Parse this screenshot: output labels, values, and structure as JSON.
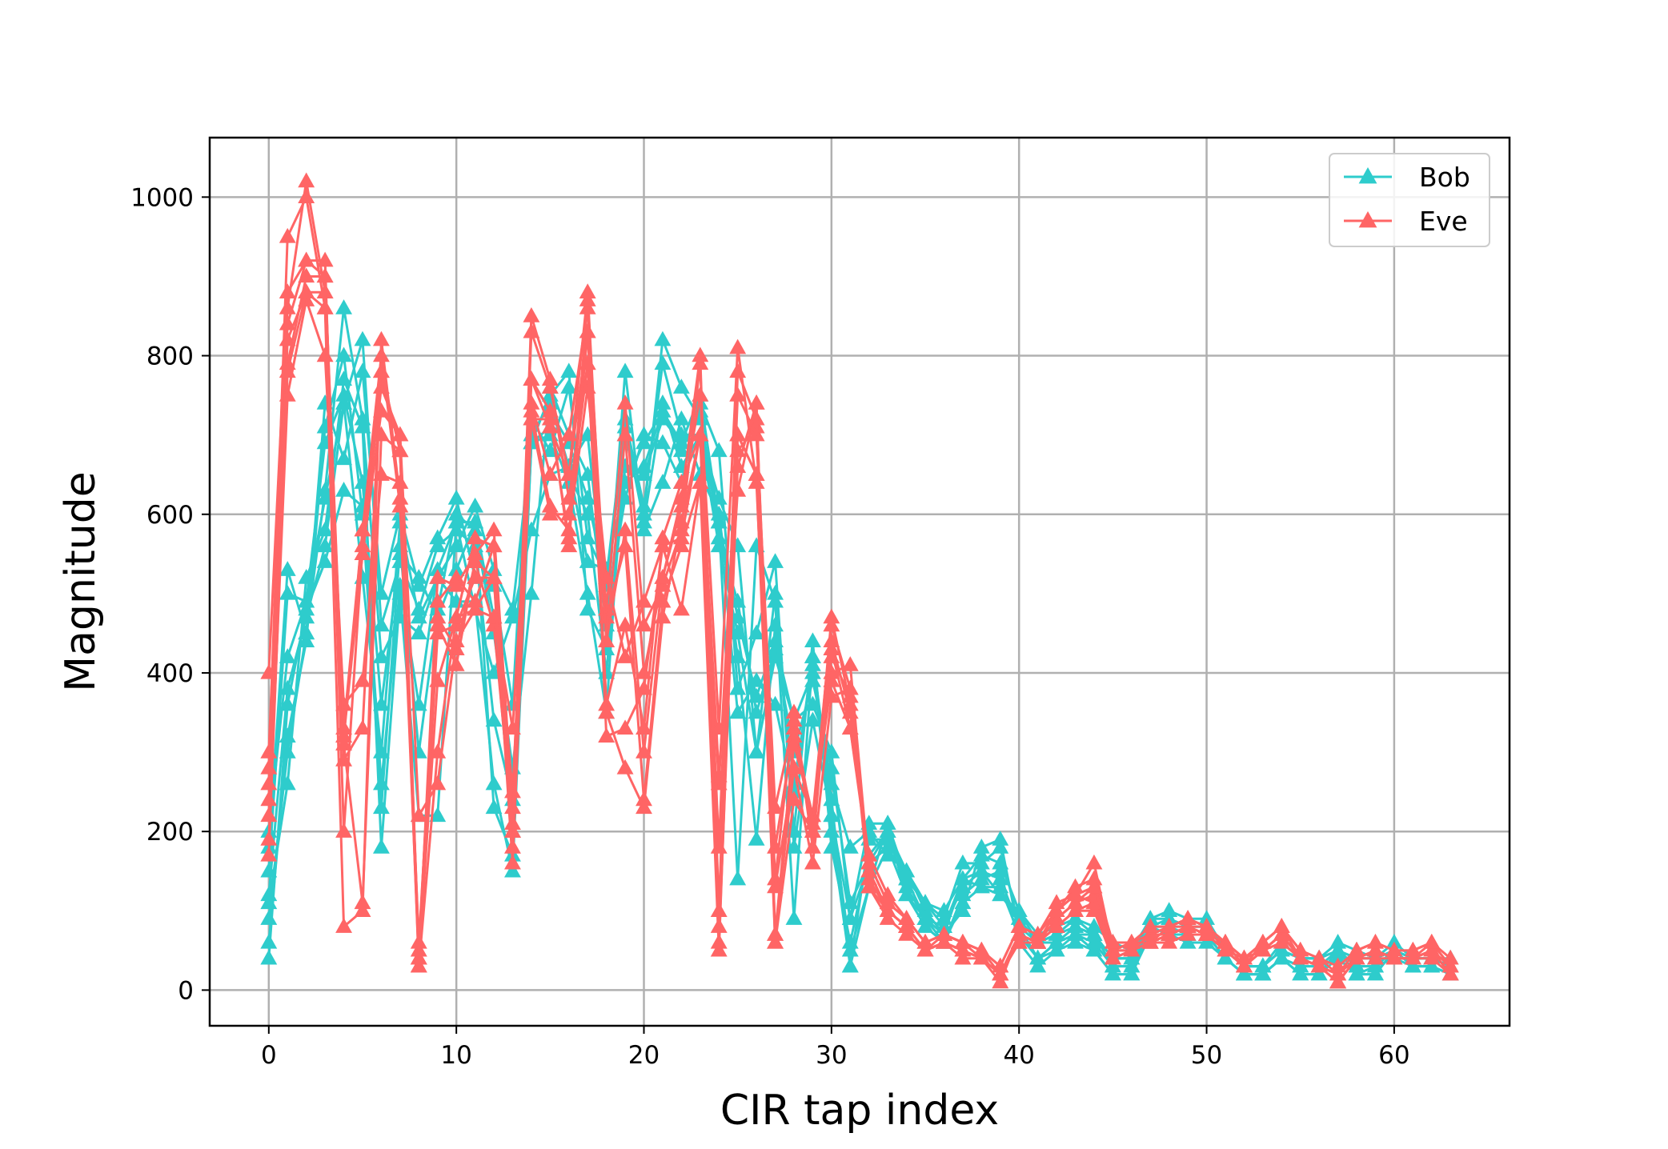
{
  "chart_data": {
    "type": "line",
    "title": "",
    "xlabel": "CIR tap index",
    "ylabel": "Magnitude",
    "xlim": [
      -3.15,
      66.15
    ],
    "ylim": [
      -45,
      1075
    ],
    "xticks": [
      0,
      10,
      20,
      30,
      40,
      50,
      60
    ],
    "yticks": [
      0,
      200,
      400,
      600,
      800,
      1000
    ],
    "xtick_labels": [
      "0",
      "10",
      "20",
      "30",
      "40",
      "50",
      "60"
    ],
    "ytick_labels": [
      "0",
      "200",
      "400",
      "600",
      "800",
      "1000"
    ],
    "grid": true,
    "legend_position": "top-right",
    "marker": "triangle-up",
    "x": [
      0,
      1,
      2,
      3,
      4,
      5,
      6,
      7,
      8,
      9,
      10,
      11,
      12,
      13,
      14,
      15,
      16,
      17,
      18,
      19,
      20,
      21,
      22,
      23,
      24,
      25,
      26,
      27,
      28,
      29,
      30,
      31,
      32,
      33,
      34,
      35,
      36,
      37,
      38,
      39,
      40,
      41,
      42,
      43,
      44,
      45,
      46,
      47,
      48,
      49,
      50,
      51,
      52,
      53,
      54,
      55,
      56,
      57,
      58,
      59,
      60,
      61,
      62,
      63
    ],
    "series": [
      {
        "name": "Bob",
        "color": "#2ecccc",
        "traces": [
          [
            120,
            380,
            470,
            560,
            740,
            520,
            300,
            590,
            470,
            520,
            560,
            610,
            530,
            480,
            690,
            710,
            650,
            600,
            400,
            660,
            650,
            720,
            690,
            700,
            620,
            560,
            300,
            420,
            340,
            400,
            260,
            180,
            200,
            170,
            150,
            110,
            100,
            140,
            170,
            160,
            100,
            70,
            80,
            90,
            80,
            60,
            50,
            90,
            90,
            80,
            80,
            50,
            30,
            30,
            60,
            40,
            40,
            60,
            50,
            40,
            50,
            40,
            40,
            30
          ],
          [
            60,
            320,
            440,
            710,
            800,
            600,
            230,
            560,
            300,
            480,
            600,
            580,
            450,
            280,
            500,
            760,
            700,
            650,
            460,
            780,
            580,
            640,
            720,
            650,
            600,
            420,
            190,
            460,
            260,
            410,
            200,
            30,
            190,
            190,
            150,
            100,
            70,
            140,
            150,
            140,
            80,
            40,
            60,
            70,
            70,
            30,
            30,
            70,
            70,
            70,
            70,
            40,
            20,
            20,
            40,
            30,
            30,
            40,
            20,
            30,
            40,
            30,
            30,
            20
          ],
          [
            150,
            500,
            490,
            620,
            740,
            820,
            460,
            540,
            480,
            560,
            580,
            560,
            340,
            240,
            720,
            680,
            760,
            570,
            520,
            720,
            610,
            790,
            700,
            700,
            560,
            450,
            300,
            500,
            200,
            440,
            180,
            60,
            170,
            200,
            120,
            90,
            70,
            100,
            180,
            190,
            70,
            40,
            60,
            70,
            60,
            30,
            30,
            80,
            80,
            70,
            70,
            40,
            20,
            20,
            40,
            30,
            30,
            50,
            30,
            30,
            50,
            40,
            40,
            30
          ],
          [
            90,
            300,
            450,
            630,
            860,
            720,
            420,
            470,
            450,
            520,
            490,
            490,
            260,
            150,
            690,
            750,
            780,
            480,
            430,
            640,
            690,
            730,
            690,
            750,
            590,
            350,
            390,
            360,
            250,
            420,
            220,
            50,
            130,
            210,
            130,
            90,
            60,
            120,
            140,
            150,
            60,
            30,
            50,
            70,
            50,
            20,
            20,
            80,
            70,
            60,
            60,
            40,
            20,
            20,
            40,
            20,
            20,
            50,
            20,
            20,
            50,
            30,
            30,
            20
          ],
          [
            200,
            420,
            490,
            690,
            750,
            640,
            360,
            550,
            520,
            470,
            530,
            590,
            470,
            200,
            700,
            740,
            660,
            540,
            530,
            640,
            660,
            730,
            680,
            730,
            570,
            490,
            350,
            430,
            300,
            390,
            280,
            110,
            160,
            180,
            140,
            90,
            80,
            130,
            150,
            120,
            90,
            60,
            60,
            80,
            70,
            40,
            40,
            80,
            90,
            80,
            80,
            50,
            30,
            30,
            50,
            40,
            40,
            50,
            40,
            40,
            60,
            40,
            40,
            30
          ],
          [
            180,
            530,
            450,
            740,
            670,
            780,
            500,
            600,
            510,
            570,
            620,
            520,
            510,
            360,
            770,
            730,
            690,
            620,
            510,
            700,
            600,
            820,
            760,
            720,
            590,
            470,
            370,
            440,
            340,
            360,
            300,
            90,
            210,
            210,
            140,
            110,
            90,
            160,
            160,
            180,
            80,
            60,
            70,
            90,
            70,
            40,
            40,
            90,
            100,
            90,
            90,
            50,
            30,
            30,
            50,
            40,
            40,
            50,
            30,
            30,
            50,
            40,
            40,
            40
          ],
          [
            110,
            260,
            520,
            580,
            770,
            710,
            180,
            500,
            220,
            220,
            590,
            590,
            230,
            170,
            690,
            700,
            640,
            500,
            350,
            710,
            590,
            740,
            660,
            700,
            590,
            140,
            560,
            490,
            90,
            420,
            240,
            30,
            130,
            180,
            120,
            80,
            60,
            110,
            130,
            130,
            70,
            40,
            50,
            60,
            50,
            20,
            20,
            70,
            70,
            70,
            70,
            40,
            20,
            20,
            40,
            20,
            20,
            40,
            20,
            20,
            50,
            30,
            30,
            20
          ],
          [
            40,
            360,
            480,
            540,
            630,
            610,
            260,
            510,
            360,
            530,
            590,
            480,
            400,
            470,
            580,
            650,
            660,
            700,
            480,
            620,
            700,
            690,
            640,
            740,
            680,
            380,
            450,
            540,
            180,
            340,
            220,
            90,
            160,
            200,
            150,
            110,
            80,
            140,
            130,
            120,
            100,
            60,
            70,
            80,
            70,
            40,
            40,
            80,
            80,
            80,
            80,
            50,
            30,
            30,
            50,
            40,
            40,
            50,
            40,
            40,
            50,
            40,
            40,
            30
          ]
        ]
      },
      {
        "name": "Eve",
        "color": "#ff6565",
        "traces": [
          [
            300,
            860,
            1020,
            880,
            290,
            330,
            780,
            680,
            50,
            490,
            520,
            490,
            560,
            200,
            740,
            650,
            700,
            860,
            470,
            560,
            240,
            490,
            560,
            640,
            260,
            700,
            650,
            140,
            350,
            180,
            440,
            350,
            160,
            110,
            90,
            60,
            70,
            60,
            50,
            30,
            80,
            70,
            100,
            130,
            140,
            60,
            60,
            70,
            80,
            90,
            80,
            60,
            40,
            60,
            80,
            50,
            40,
            20,
            50,
            60,
            50,
            50,
            60,
            30
          ],
          [
            260,
            840,
            920,
            920,
            200,
            560,
            760,
            700,
            40,
            520,
            510,
            550,
            580,
            230,
            830,
            760,
            650,
            830,
            480,
            740,
            460,
            510,
            580,
            790,
            100,
            780,
            720,
            180,
            330,
            200,
            470,
            360,
            150,
            100,
            80,
            50,
            70,
            60,
            40,
            20,
            70,
            60,
            90,
            110,
            130,
            50,
            60,
            70,
            70,
            80,
            80,
            50,
            40,
            50,
            70,
            40,
            30,
            20,
            40,
            50,
            40,
            40,
            50,
            30
          ],
          [
            220,
            790,
            900,
            900,
            310,
            110,
            700,
            680,
            40,
            450,
            460,
            520,
            520,
            180,
            770,
            710,
            650,
            880,
            440,
            700,
            400,
            520,
            620,
            800,
            80,
            680,
            710,
            70,
            320,
            220,
            460,
            380,
            140,
            100,
            80,
            50,
            60,
            50,
            40,
            20,
            60,
            60,
            90,
            110,
            120,
            50,
            50,
            60,
            70,
            80,
            70,
            50,
            30,
            50,
            70,
            40,
            30,
            10,
            40,
            50,
            40,
            40,
            50,
            20
          ],
          [
            190,
            750,
            870,
            800,
            360,
            390,
            650,
            640,
            30,
            470,
            430,
            540,
            520,
            250,
            730,
            610,
            580,
            760,
            520,
            420,
            490,
            560,
            570,
            700,
            270,
            630,
            740,
            60,
            310,
            220,
            390,
            330,
            170,
            120,
            90,
            60,
            70,
            60,
            50,
            20,
            70,
            60,
            100,
            120,
            110,
            50,
            50,
            70,
            80,
            80,
            70,
            60,
            40,
            50,
            70,
            40,
            30,
            20,
            40,
            50,
            40,
            40,
            50,
            30
          ],
          [
            280,
            950,
            1000,
            860,
            80,
            100,
            820,
            620,
            60,
            460,
            410,
            540,
            460,
            210,
            850,
            770,
            620,
            790,
            440,
            580,
            300,
            520,
            610,
            750,
            330,
            810,
            640,
            130,
            280,
            220,
            400,
            410,
            150,
            100,
            80,
            50,
            60,
            50,
            40,
            10,
            70,
            60,
            100,
            120,
            160,
            50,
            60,
            60,
            80,
            90,
            80,
            60,
            30,
            60,
            80,
            40,
            30,
            20,
            40,
            50,
            40,
            40,
            60,
            30
          ],
          [
            400,
            880,
            920,
            900,
            320,
            580,
            780,
            680,
            30,
            300,
            470,
            570,
            560,
            200,
            770,
            730,
            560,
            870,
            320,
            330,
            380,
            560,
            480,
            640,
            50,
            700,
            650,
            60,
            240,
            200,
            420,
            370,
            130,
            100,
            80,
            50,
            60,
            50,
            40,
            20,
            60,
            60,
            80,
            100,
            110,
            40,
            50,
            60,
            70,
            80,
            70,
            50,
            30,
            50,
            70,
            40,
            30,
            10,
            40,
            50,
            40,
            40,
            50,
            20
          ],
          [
            240,
            820,
            880,
            880,
            320,
            550,
            730,
            700,
            220,
            260,
            440,
            480,
            470,
            330,
            720,
            720,
            570,
            830,
            360,
            460,
            330,
            570,
            640,
            700,
            180,
            750,
            700,
            230,
            340,
            210,
            430,
            330,
            160,
            110,
            90,
            60,
            70,
            60,
            50,
            30,
            80,
            70,
            110,
            120,
            130,
            60,
            60,
            80,
            80,
            90,
            80,
            60,
            40,
            60,
            80,
            50,
            40,
            30,
            50,
            60,
            50,
            50,
            60,
            40
          ],
          [
            170,
            780,
            880,
            860,
            330,
            580,
            800,
            610,
            40,
            390,
            470,
            480,
            520,
            160,
            720,
            600,
            600,
            790,
            350,
            280,
            230,
            470,
            590,
            700,
            60,
            660,
            740,
            70,
            280,
            160,
            370,
            380,
            130,
            90,
            70,
            50,
            60,
            40,
            40,
            20,
            60,
            60,
            80,
            100,
            100,
            40,
            50,
            60,
            60,
            70,
            70,
            50,
            30,
            50,
            60,
            40,
            30,
            10,
            40,
            40,
            40,
            40,
            40,
            20
          ]
        ]
      }
    ]
  }
}
